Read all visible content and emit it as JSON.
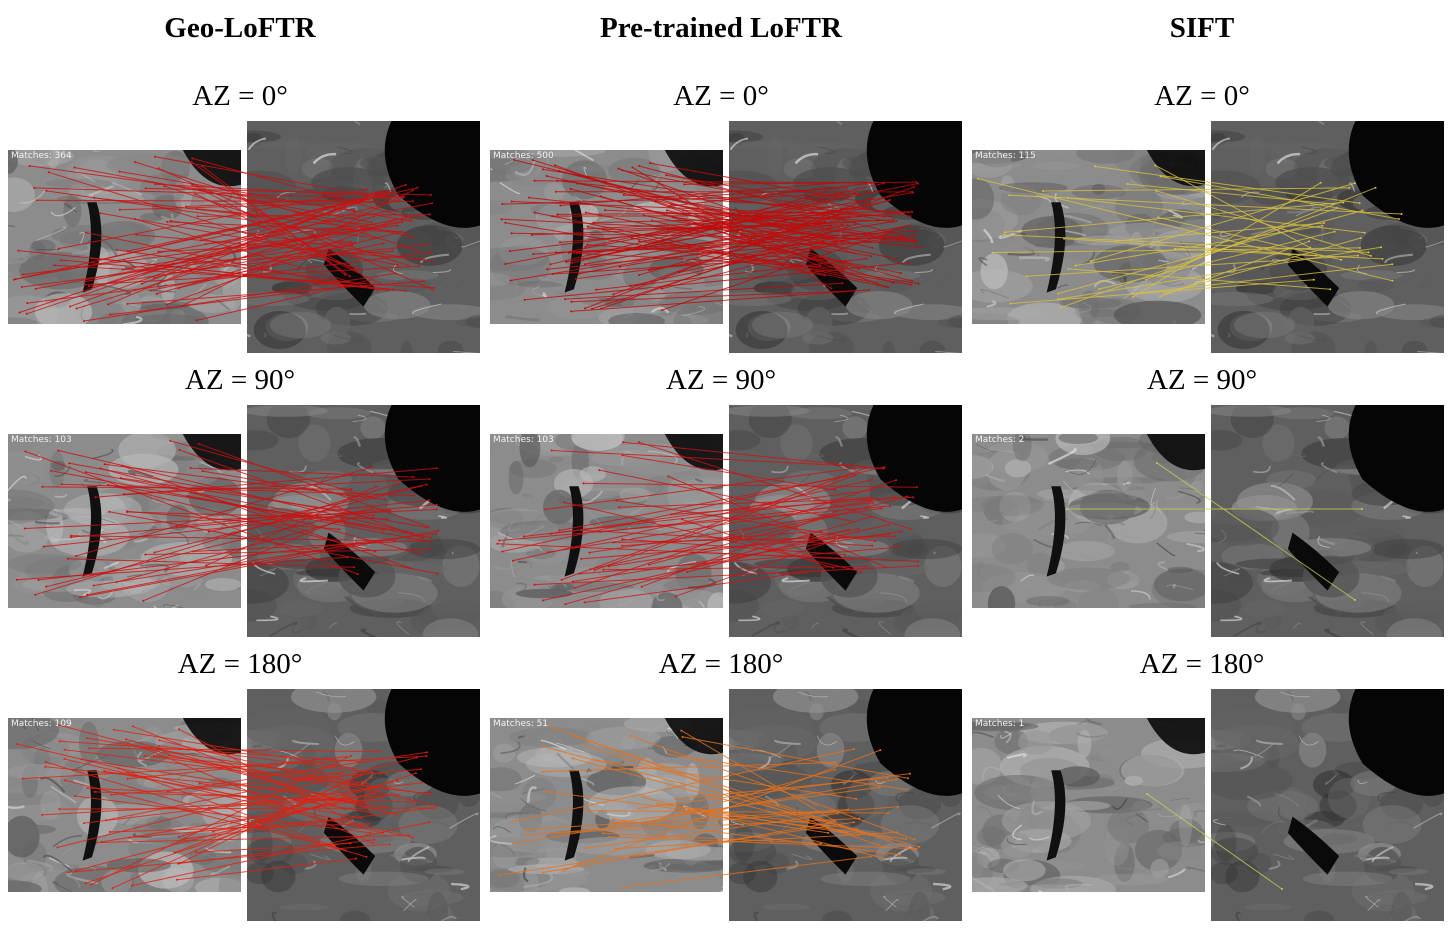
{
  "columns": [
    {
      "title": "Geo-LoFTR"
    },
    {
      "title": "Pre-trained  LoFTR"
    },
    {
      "title": "SIFT"
    }
  ],
  "rows": [
    {
      "label": "AZ = 0°"
    },
    {
      "label": "AZ = 90°"
    },
    {
      "label": "AZ = 180°"
    }
  ],
  "panels": [
    [
      {
        "matches": "Matches: 364",
        "color": "#cc1010"
      },
      {
        "matches": "Matches: 103",
        "color": "#cc1010"
      },
      {
        "matches": "Matches: 109",
        "color": "#e02010"
      }
    ],
    [
      {
        "matches": "Matches: 500",
        "color": "#c00a0a"
      },
      {
        "matches": "Matches: 103",
        "color": "#d01212"
      },
      {
        "matches": "Matches: 51",
        "color": "#e8701a"
      }
    ],
    [
      {
        "matches": "Matches: 115",
        "color": "#d8c040"
      },
      {
        "matches": "Matches: 2",
        "color": "#c8d050"
      },
      {
        "matches": "Matches: 1",
        "color": "#c8d050"
      }
    ]
  ]
}
